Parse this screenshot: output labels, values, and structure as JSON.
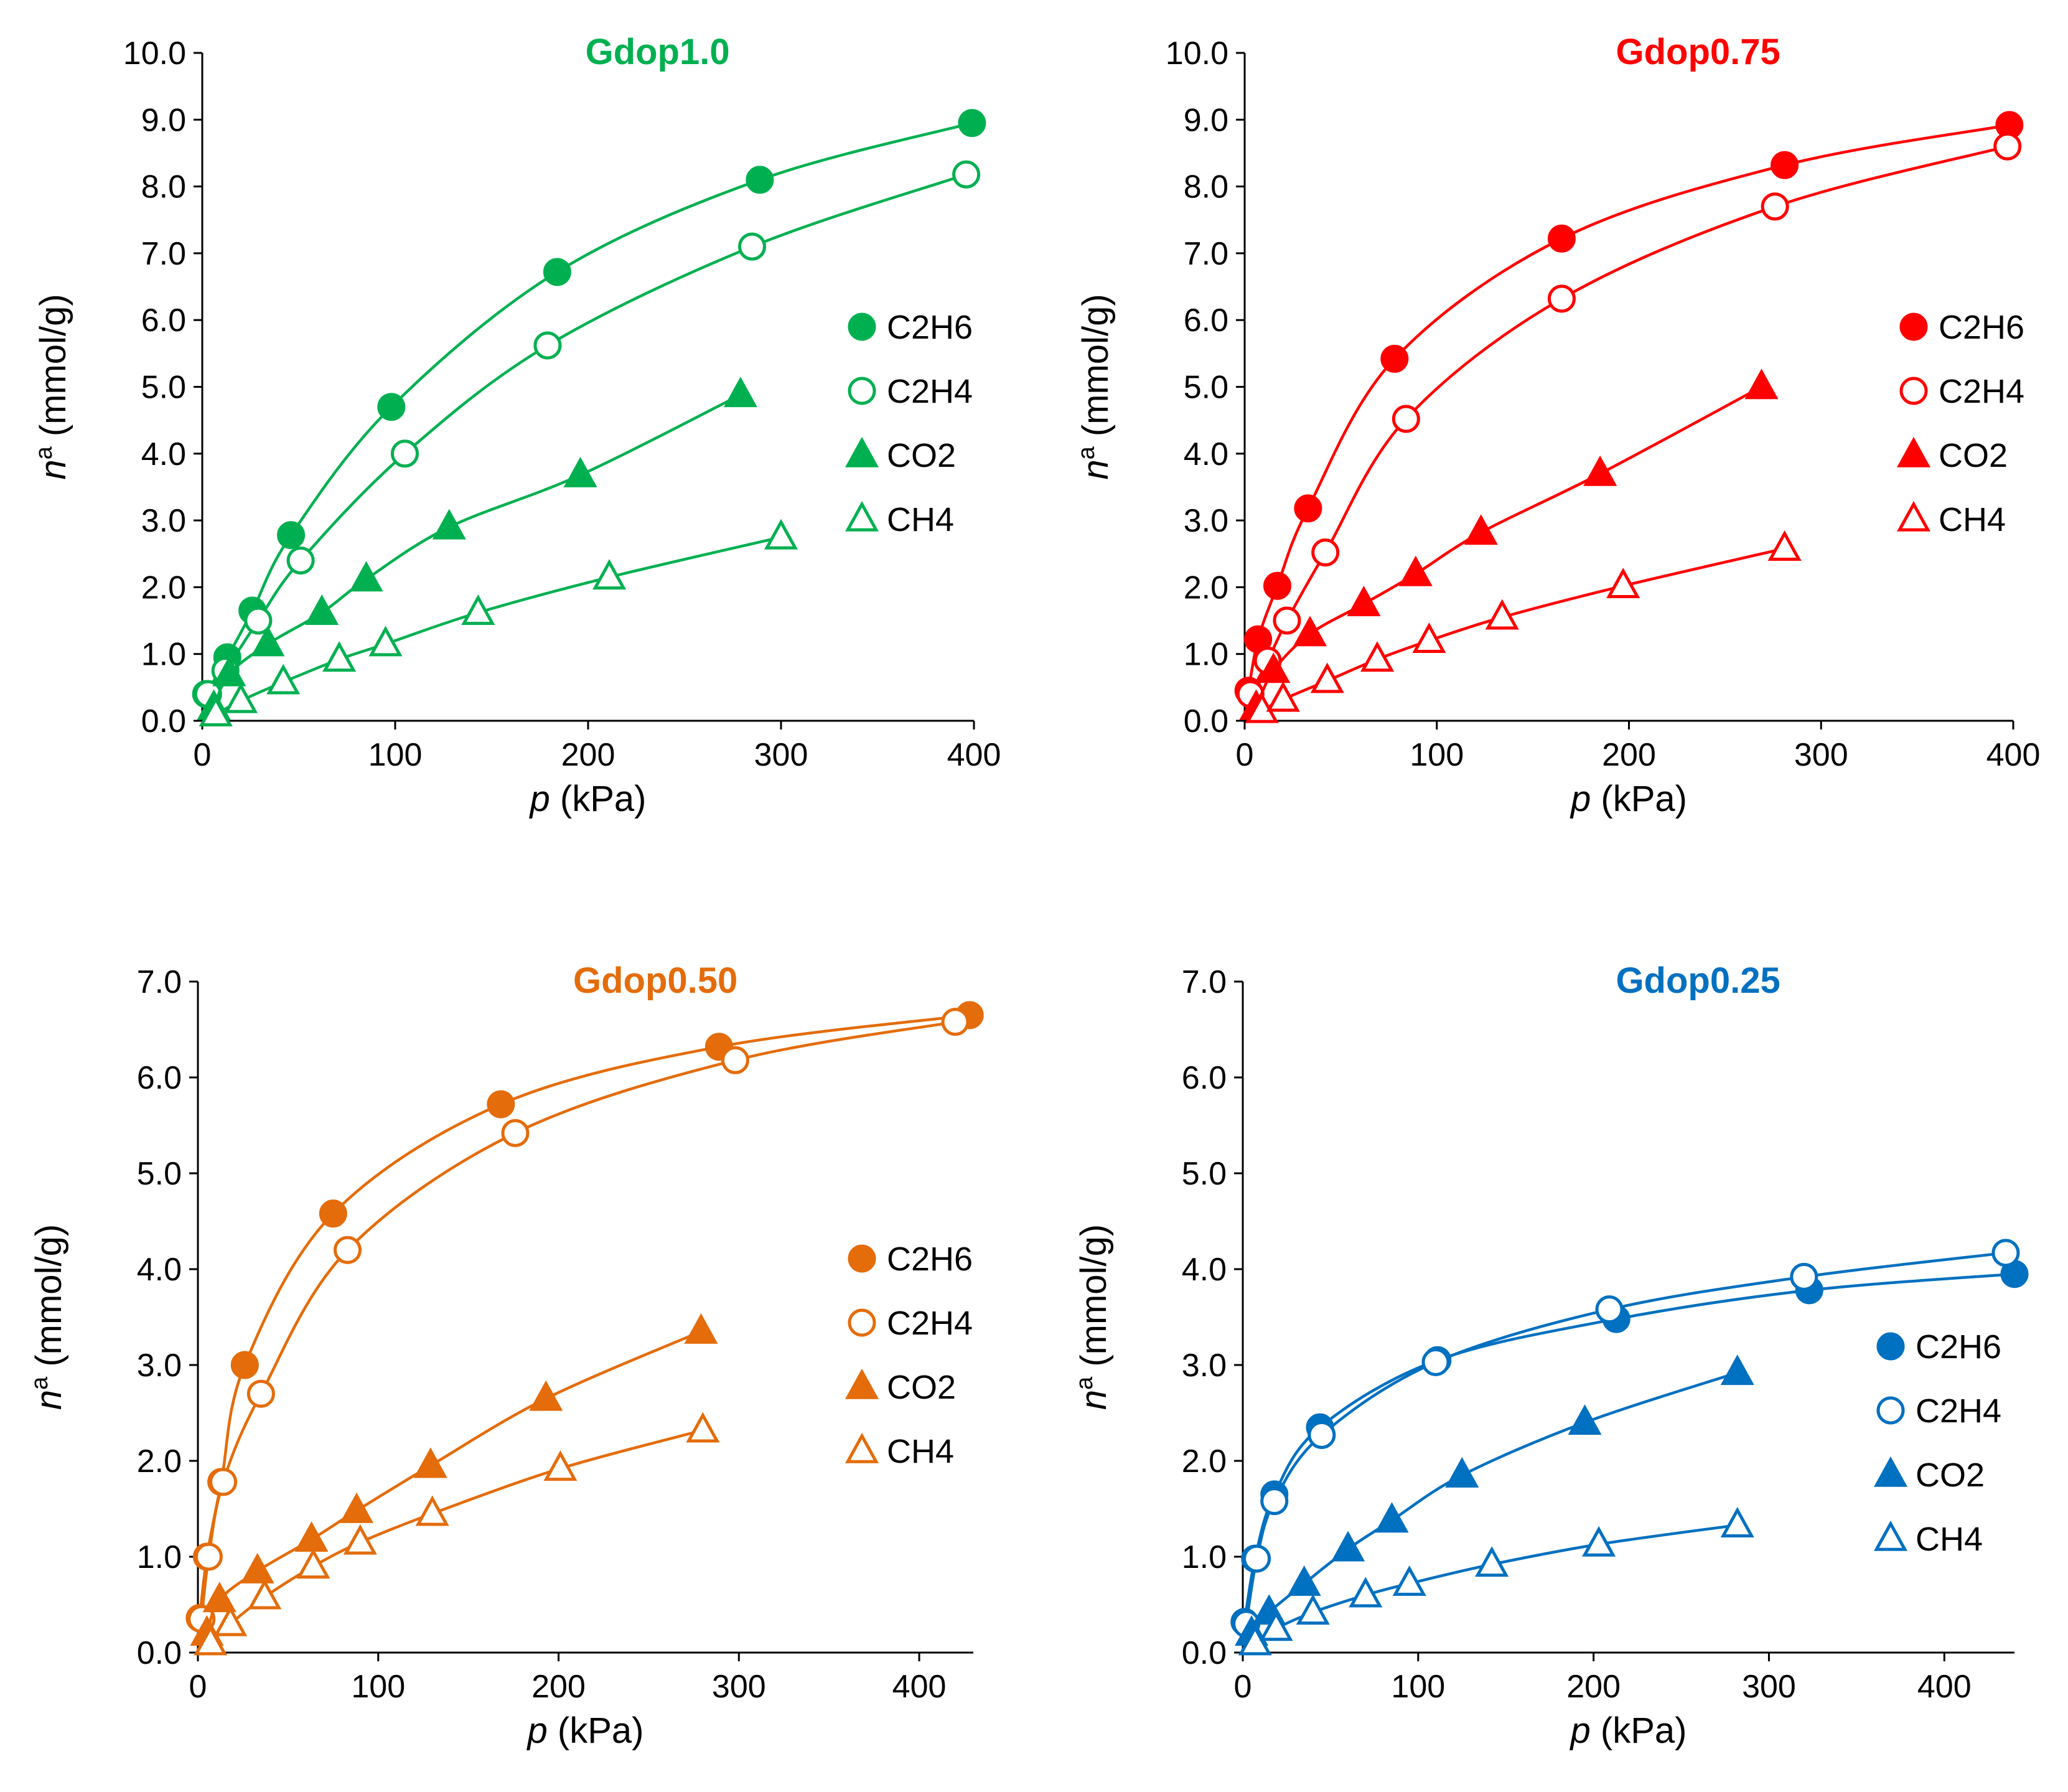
{
  "chart_data": [
    {
      "type": "scatter",
      "title": "Gdop1.0",
      "color": "#00b050",
      "xlabel_var": "p",
      "xlabel_unit": "(kPa)",
      "ylabel_var": "n",
      "ylabel_sup": "a",
      "ylabel_unit": "(mmol/g)",
      "xlim": [
        0,
        400
      ],
      "ylim": [
        0,
        10
      ],
      "xticks": [
        "0",
        "100",
        "200",
        "300",
        "400"
      ],
      "yticks": [
        "0.0",
        "1.0",
        "2.0",
        "3.0",
        "4.0",
        "5.0",
        "6.0",
        "7.0",
        "8.0",
        "9.0",
        "10.0"
      ],
      "series": [
        {
          "name": "C2H6",
          "marker": "circle",
          "filled": true,
          "x": [
            2,
            13,
            26,
            46,
            98,
            184,
            289,
            399
          ],
          "y": [
            0.4,
            0.95,
            1.65,
            2.78,
            4.7,
            6.72,
            8.1,
            8.95
          ]
        },
        {
          "name": "C2H4",
          "marker": "circle",
          "filled": false,
          "x": [
            3,
            12,
            29,
            51,
            105,
            179,
            285,
            396
          ],
          "y": [
            0.4,
            0.75,
            1.5,
            2.4,
            4.0,
            5.62,
            7.1,
            8.18
          ]
        },
        {
          "name": "CO2",
          "marker": "triangle",
          "filled": true,
          "x": [
            6,
            14,
            34,
            62,
            85,
            128,
            196,
            279
          ],
          "y": [
            0.2,
            0.7,
            1.15,
            1.62,
            2.12,
            2.9,
            3.68,
            4.88
          ]
        },
        {
          "name": "CH4",
          "marker": "triangle",
          "filled": false,
          "x": [
            7,
            20,
            42,
            71,
            95,
            143,
            211,
            300
          ],
          "y": [
            0.1,
            0.3,
            0.58,
            0.92,
            1.15,
            1.62,
            2.15,
            2.75
          ]
        }
      ]
    },
    {
      "type": "scatter",
      "title": "Gdop0.75",
      "color": "#ff0000",
      "xlabel_var": "p",
      "xlabel_unit": "(kPa)",
      "ylabel_var": "n",
      "ylabel_sup": "a",
      "ylabel_unit": "(mmol/g)",
      "xlim": [
        0,
        400
      ],
      "ylim": [
        0,
        10
      ],
      "xticks": [
        "0",
        "100",
        "200",
        "300",
        "400"
      ],
      "yticks": [
        "0.0",
        "1.0",
        "2.0",
        "3.0",
        "4.0",
        "5.0",
        "6.0",
        "7.0",
        "8.0",
        "9.0",
        "10.0"
      ],
      "series": [
        {
          "name": "C2H6",
          "marker": "circle",
          "filled": true,
          "x": [
            2,
            7,
            17,
            33,
            78,
            165,
            281,
            398
          ],
          "y": [
            0.45,
            1.22,
            2.02,
            3.18,
            5.42,
            7.22,
            8.32,
            8.92
          ]
        },
        {
          "name": "C2H4",
          "marker": "circle",
          "filled": false,
          "x": [
            3,
            12,
            22,
            42,
            84,
            165,
            276,
            397
          ],
          "y": [
            0.4,
            0.9,
            1.5,
            2.52,
            4.52,
            6.32,
            7.7,
            8.6
          ]
        },
        {
          "name": "CO2",
          "marker": "triangle",
          "filled": true,
          "x": [
            6,
            15,
            34,
            62,
            89,
            123,
            185,
            269
          ],
          "y": [
            0.2,
            0.75,
            1.3,
            1.75,
            2.2,
            2.82,
            3.7,
            5.0
          ]
        },
        {
          "name": "CH4",
          "marker": "triangle",
          "filled": false,
          "x": [
            9,
            20,
            43,
            69,
            96,
            134,
            197,
            281
          ],
          "y": [
            0.15,
            0.32,
            0.6,
            0.92,
            1.2,
            1.55,
            2.02,
            2.58
          ]
        }
      ]
    },
    {
      "type": "scatter",
      "title": "Gdop0.50",
      "color": "#e46c0a",
      "xlabel_var": "p",
      "xlabel_unit": "(kPa)",
      "ylabel_var": "n",
      "ylabel_sup": "a",
      "ylabel_unit": "(mmol/g)",
      "xlim": [
        0,
        430
      ],
      "ylim": [
        0,
        7
      ],
      "xticks": [
        "0",
        "100",
        "200",
        "300",
        "400"
      ],
      "ytick_values": [
        0,
        1,
        2,
        3,
        4,
        5,
        6,
        7
      ],
      "yticks": [
        "0.0",
        "1.0",
        "2.0",
        "3.0",
        "4.0",
        "5.0",
        "6.0",
        "7.0"
      ],
      "series": [
        {
          "name": "C2H6",
          "marker": "circle",
          "filled": true,
          "x": [
            1,
            5,
            13,
            26,
            75,
            168,
            289,
            428
          ],
          "y": [
            0.36,
            1.0,
            1.78,
            3.0,
            4.58,
            5.72,
            6.32,
            6.65
          ]
        },
        {
          "name": "C2H4",
          "marker": "circle",
          "filled": false,
          "x": [
            2,
            6,
            14,
            35,
            83,
            176,
            298,
            420
          ],
          "y": [
            0.35,
            1.0,
            1.78,
            2.7,
            4.2,
            5.42,
            6.18,
            6.58
          ]
        },
        {
          "name": "CO2",
          "marker": "triangle",
          "filled": true,
          "x": [
            5,
            12,
            33,
            63,
            88,
            129,
            193,
            279
          ],
          "y": [
            0.2,
            0.55,
            0.85,
            1.18,
            1.48,
            1.95,
            2.65,
            3.35
          ]
        },
        {
          "name": "CH4",
          "marker": "triangle",
          "filled": false,
          "x": [
            7,
            18,
            37,
            64,
            90,
            130,
            201,
            280
          ],
          "y": [
            0.1,
            0.3,
            0.58,
            0.9,
            1.15,
            1.45,
            1.92,
            2.32
          ]
        }
      ]
    },
    {
      "type": "scatter",
      "title": "Gdop0.25",
      "color": "#0070c0",
      "xlabel_var": "p",
      "xlabel_unit": "(kPa)",
      "ylabel_var": "n",
      "ylabel_sup": "a",
      "ylabel_unit": "(mmol/g)",
      "xlim": [
        0,
        440
      ],
      "ylim": [
        0,
        7
      ],
      "xticks": [
        "0",
        "100",
        "200",
        "300",
        "400"
      ],
      "yticks": [
        "0.0",
        "1.0",
        "2.0",
        "3.0",
        "4.0",
        "5.0",
        "6.0",
        "7.0"
      ],
      "series": [
        {
          "name": "C2H6",
          "marker": "circle",
          "filled": true,
          "x": [
            1,
            7,
            18,
            44,
            111,
            213,
            323,
            440
          ],
          "y": [
            0.32,
            0.98,
            1.65,
            2.35,
            3.05,
            3.48,
            3.78,
            3.95
          ]
        },
        {
          "name": "C2H4",
          "marker": "circle",
          "filled": false,
          "x": [
            2,
            8,
            18,
            45,
            110,
            209,
            320,
            435
          ],
          "y": [
            0.3,
            0.98,
            1.58,
            2.27,
            3.03,
            3.58,
            3.92,
            4.17
          ]
        },
        {
          "name": "CO2",
          "marker": "triangle",
          "filled": true,
          "x": [
            5,
            15,
            35,
            60,
            85,
            125,
            195,
            282
          ],
          "y": [
            0.2,
            0.42,
            0.72,
            1.08,
            1.38,
            1.85,
            2.4,
            2.92
          ]
        },
        {
          "name": "CH4",
          "marker": "triangle",
          "filled": false,
          "x": [
            7,
            19,
            40,
            70,
            95,
            142,
            203,
            282
          ],
          "y": [
            0.1,
            0.25,
            0.42,
            0.6,
            0.72,
            0.92,
            1.13,
            1.33
          ]
        }
      ]
    }
  ]
}
